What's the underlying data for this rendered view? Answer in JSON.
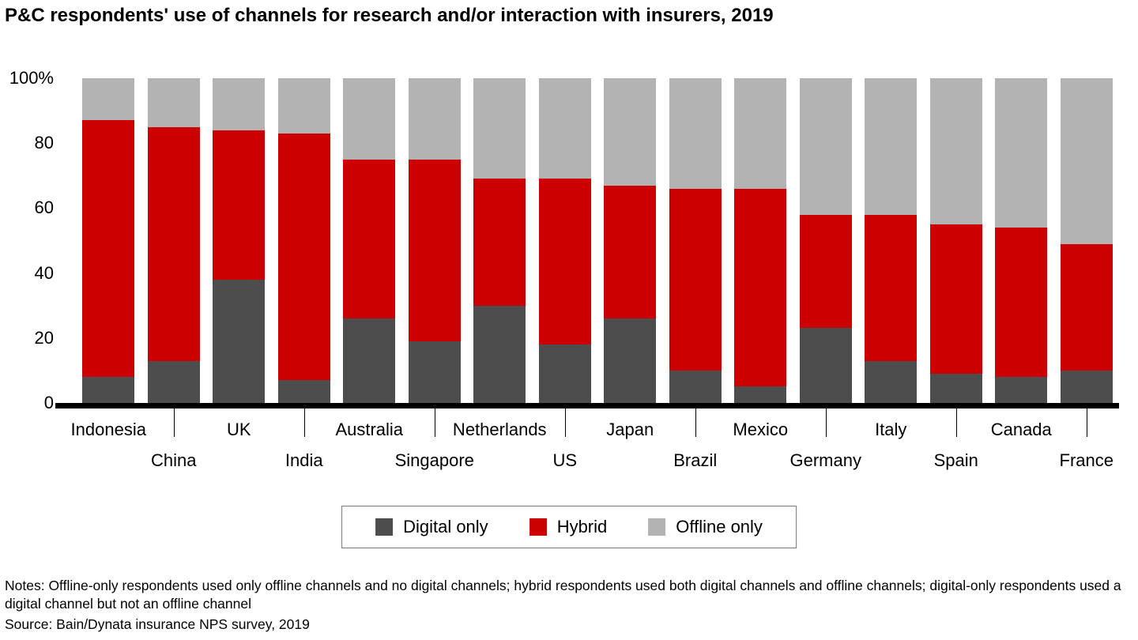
{
  "title": "P&C respondents' use of channels for research and/or interaction with insurers, 2019",
  "chart_data": {
    "type": "bar",
    "stacked": true,
    "title": "P&C respondents' use of channels for research and/or interaction with insurers, 2019",
    "xlabel": "",
    "ylabel": "",
    "ylim": [
      0,
      100
    ],
    "grid": false,
    "legend_position": "bottom",
    "categories": [
      "Indonesia",
      "China",
      "UK",
      "India",
      "Australia",
      "Singapore",
      "Netherlands",
      "US",
      "Japan",
      "Brazil",
      "Mexico",
      "Germany",
      "Italy",
      "Spain",
      "Canada",
      "France"
    ],
    "series": [
      {
        "name": "Digital only",
        "color": "#4d4d4d",
        "values": [
          8,
          13,
          38,
          7,
          26,
          19,
          30,
          18,
          26,
          10,
          5,
          23,
          13,
          9,
          8,
          10
        ]
      },
      {
        "name": "Hybrid",
        "color": "#cc0000",
        "values": [
          79,
          72,
          46,
          76,
          49,
          56,
          39,
          51,
          41,
          56,
          61,
          35,
          45,
          46,
          46,
          39
        ]
      },
      {
        "name": "Offline only",
        "color": "#b3b3b3",
        "values": [
          13,
          15,
          16,
          17,
          25,
          25,
          31,
          31,
          33,
          34,
          34,
          42,
          42,
          45,
          46,
          51
        ]
      }
    ],
    "yticks": [
      {
        "label": "100%",
        "value": 100
      },
      {
        "label": "80",
        "value": 80
      },
      {
        "label": "60",
        "value": 60
      },
      {
        "label": "40",
        "value": 40
      },
      {
        "label": "20",
        "value": 20
      },
      {
        "label": "0",
        "value": 0
      }
    ]
  },
  "legend": {
    "items": [
      "Digital only",
      "Hybrid",
      "Offline only"
    ]
  },
  "notes": "Notes: Offline-only respondents used only offline channels and no digital channels; hybrid respondents used both digital channels and offline channels; digital-only respondents used a digital channel but not an offline channel",
  "source": "Source: Bain/Dynata insurance NPS survey, 2019"
}
